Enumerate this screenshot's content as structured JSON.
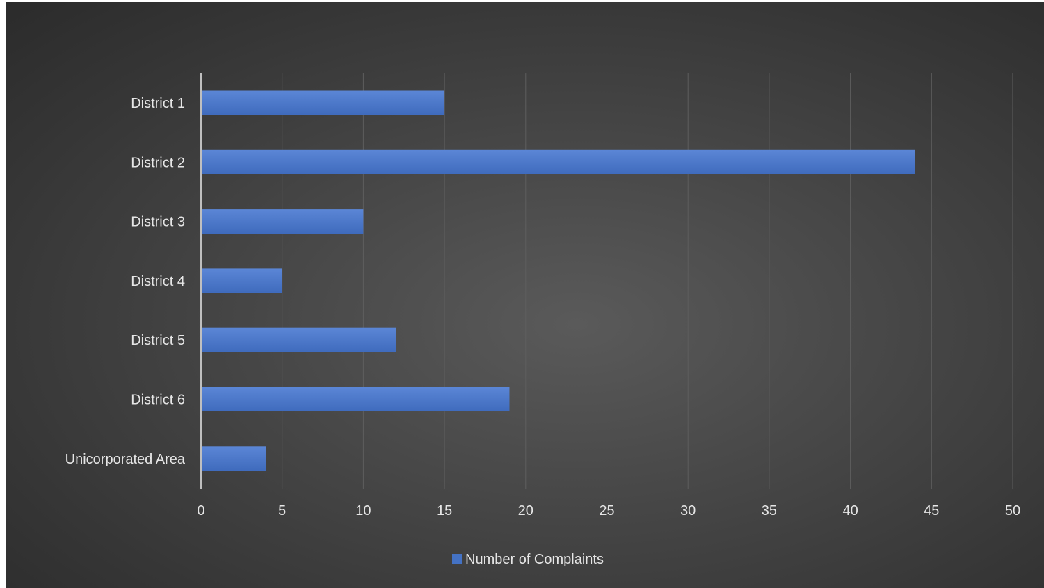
{
  "chart_data": {
    "type": "bar",
    "orientation": "horizontal",
    "categories": [
      "District 1",
      "District 2",
      "District 3",
      "District 4",
      "District 5",
      "District 6",
      "Unicorporated Area"
    ],
    "series": [
      {
        "name": "Number of Complaints",
        "values": [
          15,
          44,
          10,
          5,
          12,
          19,
          4
        ]
      }
    ],
    "xlim": [
      0,
      50
    ],
    "xticks": [
      0,
      5,
      10,
      15,
      20,
      25,
      30,
      35,
      40,
      45,
      50
    ],
    "grid": true,
    "legend": "bottom",
    "colors": {
      "bar": "#4472c4",
      "bar_light": "#5b86d6",
      "grid": "#5e5e5e",
      "axis": "#bfbfbf",
      "text": "#e6e6e6"
    }
  }
}
